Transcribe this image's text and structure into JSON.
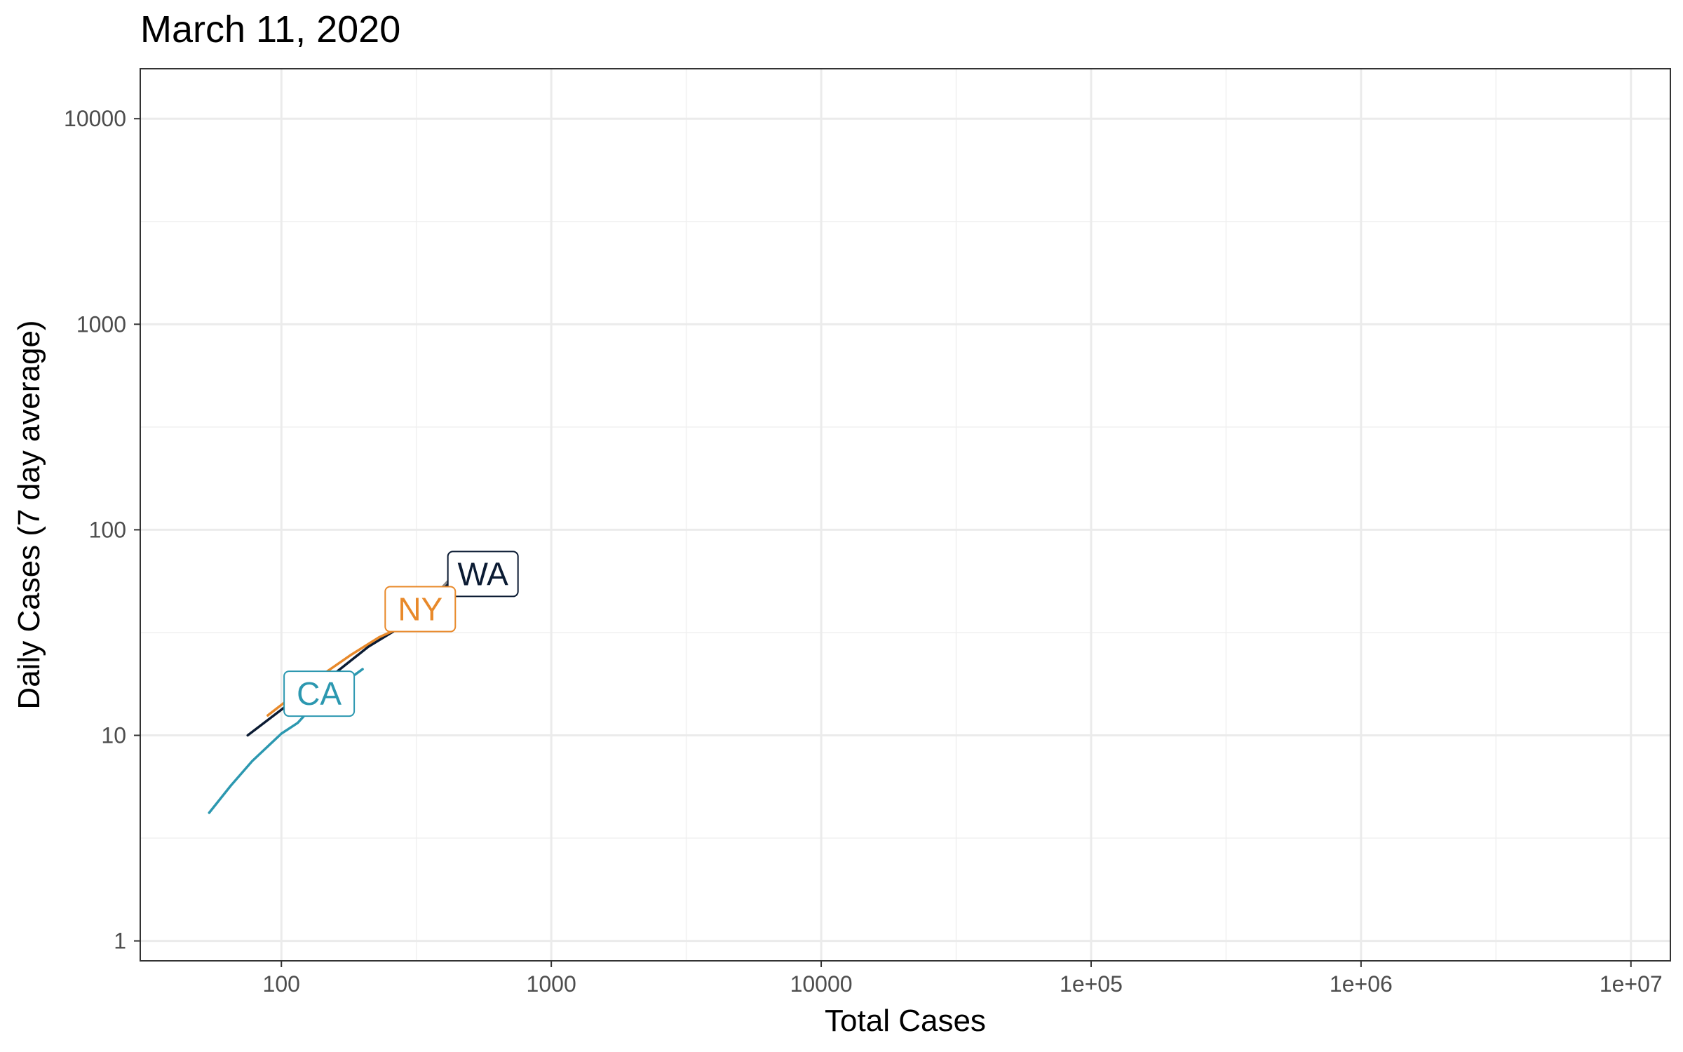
{
  "chart_data": {
    "type": "line",
    "title": "March 11, 2020",
    "xlabel": "Total Cases",
    "ylabel": "Daily Cases (7 day average)",
    "x_scale": "log10",
    "y_scale": "log10",
    "xlim": [
      30,
      14000000
    ],
    "ylim": [
      0.8,
      17500
    ],
    "x_ticks": [
      {
        "value": 100,
        "label": "100"
      },
      {
        "value": 1000,
        "label": "1000"
      },
      {
        "value": 10000,
        "label": "10000"
      },
      {
        "value": 100000,
        "label": "1e+05"
      },
      {
        "value": 1000000,
        "label": "1e+06"
      },
      {
        "value": 10000000,
        "label": "1e+07"
      }
    ],
    "y_ticks": [
      {
        "value": 1,
        "label": "1"
      },
      {
        "value": 10,
        "label": "10"
      },
      {
        "value": 100,
        "label": "100"
      },
      {
        "value": 1000,
        "label": "1000"
      },
      {
        "value": 10000,
        "label": "10000"
      }
    ],
    "grid": true,
    "series": [
      {
        "name": "WA",
        "color": "#0b1b33",
        "points": [
          [
            75,
            10
          ],
          [
            105,
            14
          ],
          [
            150,
            19
          ],
          [
            210,
            27
          ],
          [
            270,
            33
          ],
          [
            330,
            41
          ],
          [
            450,
            60
          ]
        ]
      },
      {
        "name": "NY",
        "color": "#e8892a",
        "points": [
          [
            89,
            12.5
          ],
          [
            110,
            15.5
          ],
          [
            140,
            19.5
          ],
          [
            180,
            24.5
          ],
          [
            230,
            30
          ],
          [
            270,
            33
          ]
        ]
      },
      {
        "name": "CA",
        "color": "#2c98b0",
        "points": [
          [
            54,
            4.2
          ],
          [
            65,
            5.7
          ],
          [
            78,
            7.5
          ],
          [
            100,
            10.2
          ],
          [
            115,
            11.5
          ],
          [
            135,
            14.5
          ],
          [
            165,
            17.5
          ],
          [
            200,
            21
          ]
        ]
      }
    ]
  }
}
